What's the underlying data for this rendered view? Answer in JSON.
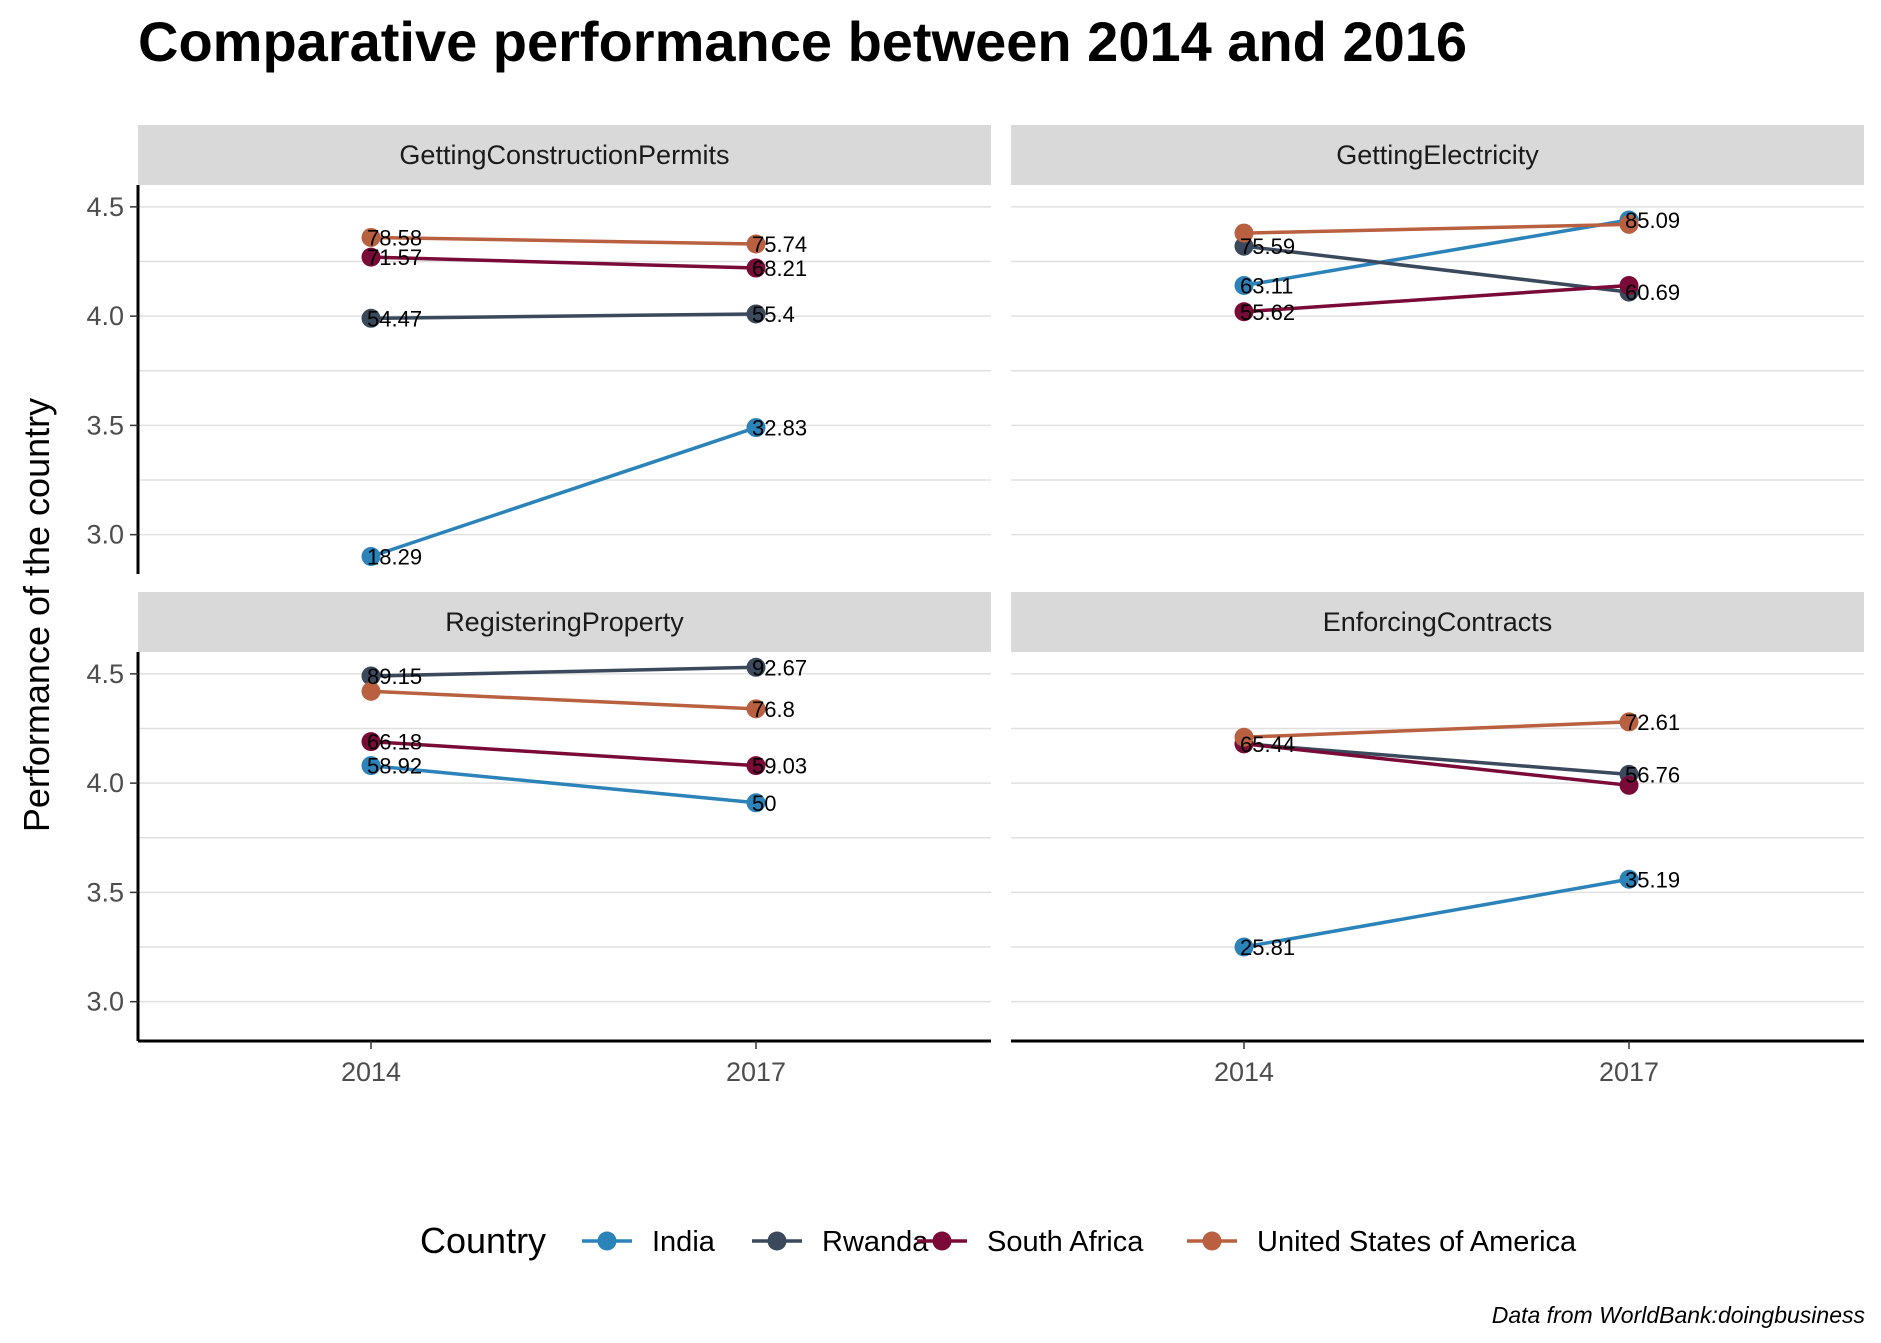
{
  "chart_data": {
    "type": "line",
    "title": "Comparative performance between 2014 and 2016",
    "ylabel": "Performance of the country",
    "xlabel": "",
    "caption": "Data from WorldBank:doingbusiness",
    "legend_title": "Country",
    "legend_position": "bottom",
    "x": [
      "2014",
      "2017"
    ],
    "ylim": [
      2.82,
      4.6
    ],
    "yticks": [
      "3.0",
      "3.5",
      "4.0",
      "4.5"
    ],
    "grid": true,
    "panels": [
      {
        "name": "GettingConstructionPermits",
        "series": [
          {
            "name": "India",
            "values": [
              2.9,
              3.49
            ],
            "labels": [
              "18.29",
              "32.83"
            ]
          },
          {
            "name": "Rwanda",
            "values": [
              3.99,
              4.01
            ],
            "labels": [
              "54.47",
              "55.4"
            ]
          },
          {
            "name": "South Africa",
            "values": [
              4.27,
              4.22
            ],
            "labels": [
              "71.57",
              "68.21"
            ]
          },
          {
            "name": "United States of America",
            "values": [
              4.36,
              4.33
            ],
            "labels": [
              "78.58",
              "75.74"
            ]
          }
        ]
      },
      {
        "name": "GettingElectricity",
        "series": [
          {
            "name": "India",
            "values": [
              4.14,
              4.44
            ],
            "labels": [
              "63.11",
              "85.09"
            ]
          },
          {
            "name": "Rwanda",
            "values": [
              4.32,
              4.11
            ],
            "labels": [
              "75.59",
              "60.69"
            ]
          },
          {
            "name": "South Africa",
            "values": [
              4.02,
              4.14
            ],
            "labels": [
              "55.62",
              ""
            ]
          },
          {
            "name": "United States of America",
            "values": [
              4.38,
              4.42
            ],
            "labels": [
              "",
              ""
            ]
          }
        ]
      },
      {
        "name": "RegisteringProperty",
        "series": [
          {
            "name": "India",
            "values": [
              4.08,
              3.91
            ],
            "labels": [
              "58.92",
              "50"
            ]
          },
          {
            "name": "Rwanda",
            "values": [
              4.49,
              4.53
            ],
            "labels": [
              "89.15",
              "92.67"
            ]
          },
          {
            "name": "South Africa",
            "values": [
              4.19,
              4.08
            ],
            "labels": [
              "66.18",
              "59.03"
            ]
          },
          {
            "name": "United States of America",
            "values": [
              4.42,
              4.34
            ],
            "labels": [
              "",
              "76.8"
            ]
          }
        ]
      },
      {
        "name": "EnforcingContracts",
        "series": [
          {
            "name": "India",
            "values": [
              3.25,
              3.56
            ],
            "labels": [
              "25.81",
              "35.19"
            ]
          },
          {
            "name": "Rwanda",
            "values": [
              4.18,
              4.04
            ],
            "labels": [
              "65.44",
              "56.76"
            ]
          },
          {
            "name": "South Africa",
            "values": [
              4.18,
              3.99
            ],
            "labels": [
              "",
              ""
            ]
          },
          {
            "name": "United States of America",
            "values": [
              4.21,
              4.28
            ],
            "labels": [
              "",
              "72.61"
            ]
          }
        ]
      }
    ],
    "colors": {
      "India": "#2b83ba",
      "Rwanda": "#3a4a5c",
      "South Africa": "#7a0a38",
      "United States of America": "#b8603f"
    }
  }
}
